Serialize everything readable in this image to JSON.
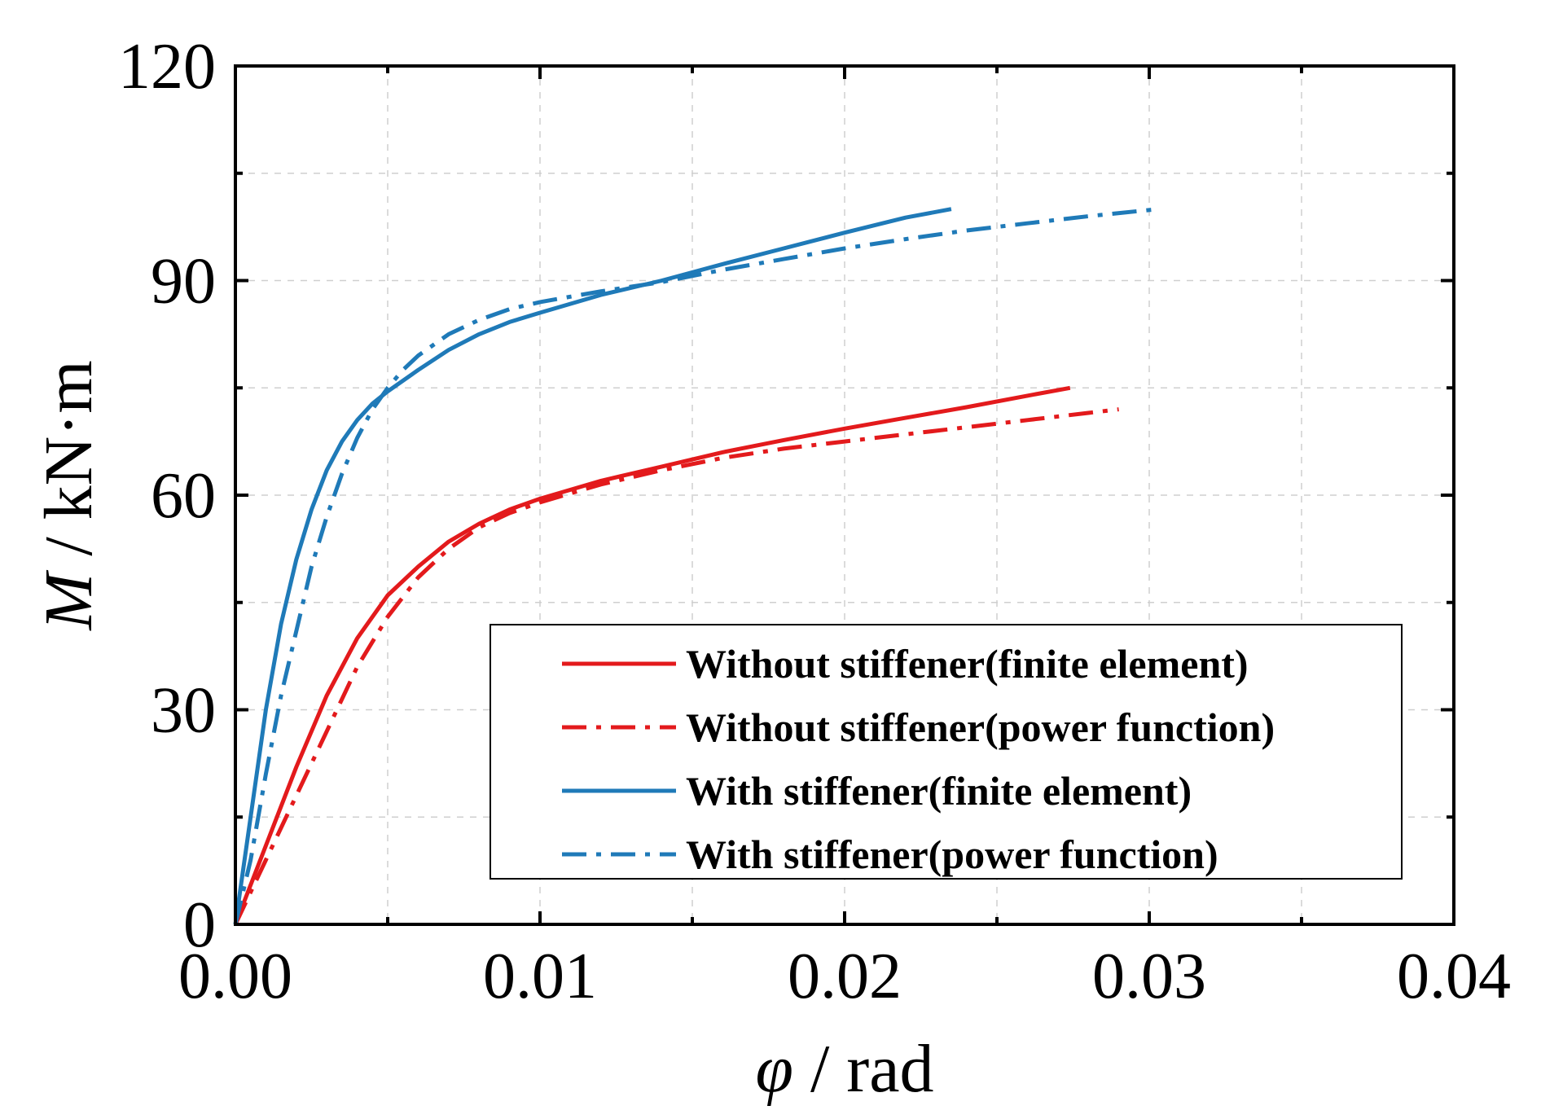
{
  "chart_data": {
    "type": "line",
    "title": "",
    "xlabel": {
      "symbol": "φ",
      "unit": " / rad"
    },
    "ylabel": {
      "symbol": "M",
      "unit": " / kN·m"
    },
    "xlim": [
      0,
      0.04
    ],
    "ylim": [
      0,
      120
    ],
    "x_ticks": [
      0,
      0.01,
      0.02,
      0.03,
      0.04
    ],
    "x_minor_ticks": [
      0.005,
      0.015,
      0.025,
      0.035
    ],
    "x_tick_labels": [
      "0.00",
      "0.01",
      "0.02",
      "0.03",
      "0.04"
    ],
    "y_ticks": [
      0,
      30,
      60,
      90,
      120
    ],
    "y_minor_ticks": [
      15,
      45,
      75,
      105
    ],
    "y_tick_labels": [
      "0",
      "30",
      "60",
      "90",
      "120"
    ],
    "grid": true,
    "legend_position": "bottom-right",
    "series": [
      {
        "name": "Without stiffener(finite element)",
        "color": "#e31a1c",
        "style": "solid",
        "x": [
          0,
          0.001,
          0.002,
          0.003,
          0.004,
          0.005,
          0.006,
          0.007,
          0.008,
          0.009,
          0.01,
          0.012,
          0.014,
          0.016,
          0.018,
          0.02,
          0.022,
          0.024,
          0.026,
          0.0274
        ],
        "y": [
          0,
          11,
          22,
          32,
          40,
          46,
          50,
          53.5,
          56,
          58,
          59.5,
          62,
          64,
          66,
          67.7,
          69.3,
          70.8,
          72.3,
          73.9,
          75
        ]
      },
      {
        "name": "Without stiffener(power function)",
        "color": "#e31a1c",
        "style": "dashdot",
        "x": [
          0,
          0.001,
          0.002,
          0.003,
          0.004,
          0.005,
          0.006,
          0.007,
          0.008,
          0.009,
          0.01,
          0.012,
          0.014,
          0.016,
          0.018,
          0.02,
          0.022,
          0.024,
          0.026,
          0.028,
          0.029
        ],
        "y": [
          0,
          9,
          18,
          27,
          36,
          43,
          48.5,
          52.5,
          55.5,
          57.5,
          59,
          61.5,
          63.5,
          65.2,
          66.5,
          67.5,
          68.5,
          69.5,
          70.5,
          71.5,
          72
        ]
      },
      {
        "name": "With stiffener(finite element)",
        "color": "#1f7ab8",
        "style": "solid",
        "x": [
          0,
          0.0005,
          0.001,
          0.0015,
          0.002,
          0.0025,
          0.003,
          0.0035,
          0.004,
          0.0045,
          0.005,
          0.006,
          0.007,
          0.008,
          0.009,
          0.01,
          0.012,
          0.014,
          0.016,
          0.018,
          0.02,
          0.022,
          0.0235
        ],
        "y": [
          0,
          15,
          30,
          42,
          51,
          58,
          63.5,
          67.5,
          70.5,
          72.8,
          74.5,
          77.5,
          80.3,
          82.5,
          84.2,
          85.5,
          88,
          90,
          92.3,
          94.5,
          96.7,
          98.8,
          100
        ]
      },
      {
        "name": "With stiffener(power function)",
        "color": "#1f7ab8",
        "style": "dashdot",
        "x": [
          0,
          0.0005,
          0.001,
          0.0015,
          0.002,
          0.0025,
          0.003,
          0.0035,
          0.004,
          0.0045,
          0.005,
          0.0055,
          0.006,
          0.007,
          0.008,
          0.009,
          0.01,
          0.012,
          0.014,
          0.016,
          0.018,
          0.02,
          0.022,
          0.024,
          0.026,
          0.028,
          0.0303
        ],
        "y": [
          0,
          9,
          21,
          32,
          41,
          50,
          57,
          63,
          68,
          72,
          75,
          77.5,
          79.5,
          82.5,
          84.5,
          86,
          87,
          88.5,
          89.8,
          91.5,
          93,
          94.5,
          95.8,
          97,
          98,
          99,
          100
        ]
      }
    ]
  }
}
